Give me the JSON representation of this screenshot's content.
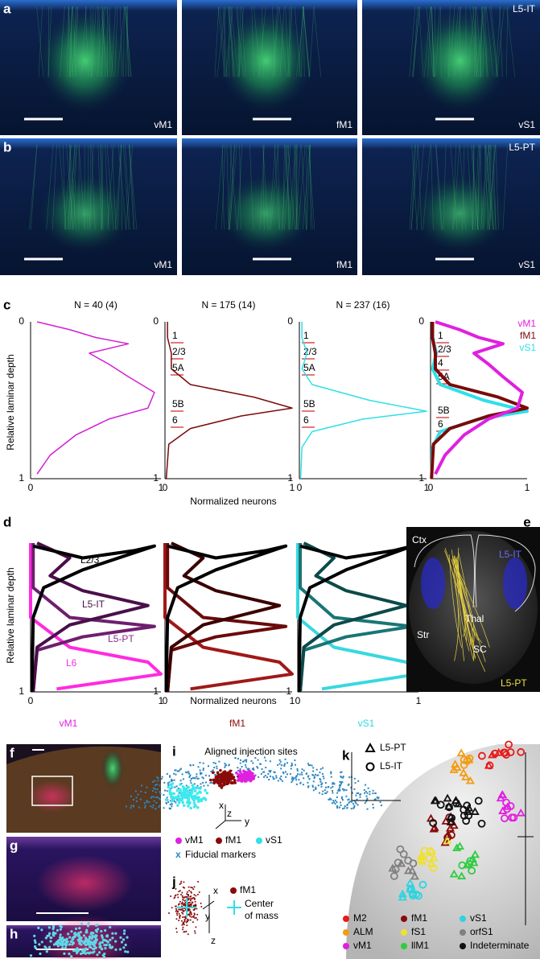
{
  "panel_labels": {
    "a": "a",
    "b": "b",
    "c": "c",
    "d": "d",
    "e": "e",
    "f": "f",
    "g": "g",
    "h": "h",
    "i": "i",
    "j": "j",
    "k": "k"
  },
  "a": {
    "regions": [
      "vM1",
      "fM1",
      "vS1"
    ],
    "class": "L5-IT"
  },
  "b": {
    "regions": [
      "vM1",
      "fM1",
      "vS1"
    ],
    "class": "L5-PT"
  },
  "c": {
    "titles": [
      "N = 40 (4)",
      "N = 175 (14)",
      "N = 237 (16)"
    ],
    "y_label": "Relative laminar depth",
    "x_label": "Normalized neurons",
    "ticks": [
      "0",
      "1"
    ],
    "layers_motor": [
      "1",
      "2/3",
      "5A",
      "5B",
      "6"
    ],
    "layers_sensory": [
      "1",
      "2/3",
      "4",
      "5A",
      "5B",
      "6"
    ],
    "legend": [
      "vM1",
      "fM1",
      "vS1"
    ]
  },
  "d": {
    "y_label": "Relative laminar depth",
    "x_label": "Normalized neurons",
    "ticks": [
      "0",
      "1"
    ],
    "series": [
      "L2/3",
      "L5-IT",
      "L5-PT",
      "L6"
    ],
    "regions": [
      "vM1",
      "fM1",
      "vS1"
    ]
  },
  "e": {
    "labels": [
      "Ctx",
      "L5-IT",
      "Thal",
      "Str",
      "SC",
      "L5-PT"
    ]
  },
  "i": {
    "title": "Aligned injection sites",
    "axes": [
      "x",
      "z",
      "y"
    ],
    "legend": [
      "vM1",
      "fM1",
      "vS1"
    ],
    "fiducial_symbol": "x",
    "fiducial": "Fiducial markers"
  },
  "j": {
    "axes": [
      "x",
      "y",
      "z"
    ],
    "legend": "fM1",
    "center": [
      "Center",
      "of mass"
    ]
  },
  "k": {
    "shapes": [
      "L5-PT",
      "L5-IT"
    ],
    "legend": [
      "M2",
      "fM1",
      "vS1",
      "ALM",
      "fS1",
      "orfS1",
      "vM1",
      "llM1",
      "Indeterminate"
    ]
  }
}
